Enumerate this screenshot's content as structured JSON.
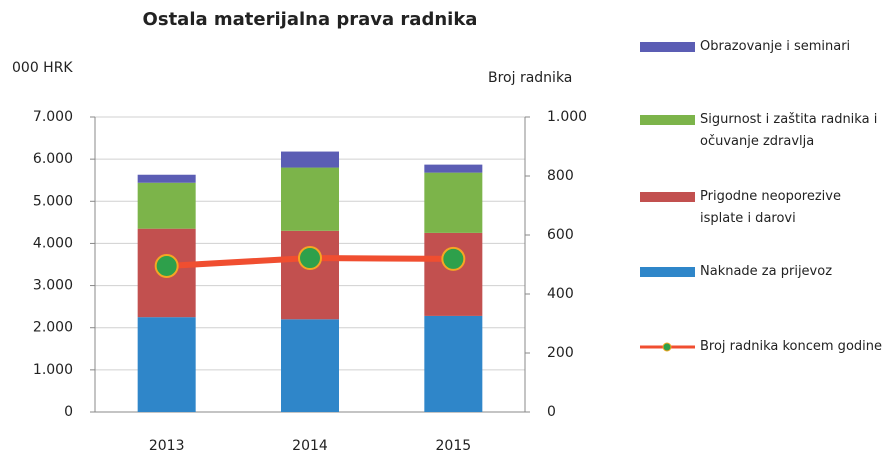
{
  "chart_data": {
    "type": "bar",
    "stacked": true,
    "title": "Ostala materijalna prava radnika",
    "ylabel": "000 HRK",
    "y2label": "Broj radnika",
    "categories": [
      "2013",
      "2014",
      "2015"
    ],
    "series": [
      {
        "name": "Naknade za prijevoz",
        "color": "#2f86c9",
        "values": [
          2250,
          2200,
          2280
        ]
      },
      {
        "name": "Prigodne neoporezive isplate i darovi",
        "color": "#c2504f",
        "values": [
          2100,
          2100,
          1970
        ]
      },
      {
        "name": "Sigurnost i zaštita radnika i očuvanje zdravlja",
        "color": "#7cb44a",
        "values": [
          1090,
          1500,
          1430
        ]
      },
      {
        "name": "Obrazovanje i seminari",
        "color": "#5b5db4",
        "values": [
          190,
          380,
          190
        ]
      },
      {
        "name": "Broj radnika koncem godine",
        "color": "#f04e30",
        "marker_color": "#2ea04b",
        "type": "line",
        "axis": "y2",
        "values": [
          495,
          522,
          519
        ]
      }
    ],
    "ylim": [
      0,
      7000
    ],
    "yticks": [
      0,
      {
        "value": 1000,
        "label": "1.000"
      },
      {
        "value": 2000,
        "label": "2.000"
      },
      {
        "value": 3000,
        "label": "3.000"
      },
      {
        "value": 4000,
        "label": "4.000"
      },
      {
        "value": 5000,
        "label": "5.000"
      },
      {
        "value": 6000,
        "label": "6.000"
      },
      {
        "value": 7000,
        "label": "7.000"
      }
    ],
    "y2lim": [
      0,
      1000
    ],
    "y2ticks": [
      0,
      200,
      400,
      600,
      800,
      {
        "value": 1000,
        "label": "1.000"
      }
    ],
    "grid": true,
    "legend": "right"
  }
}
